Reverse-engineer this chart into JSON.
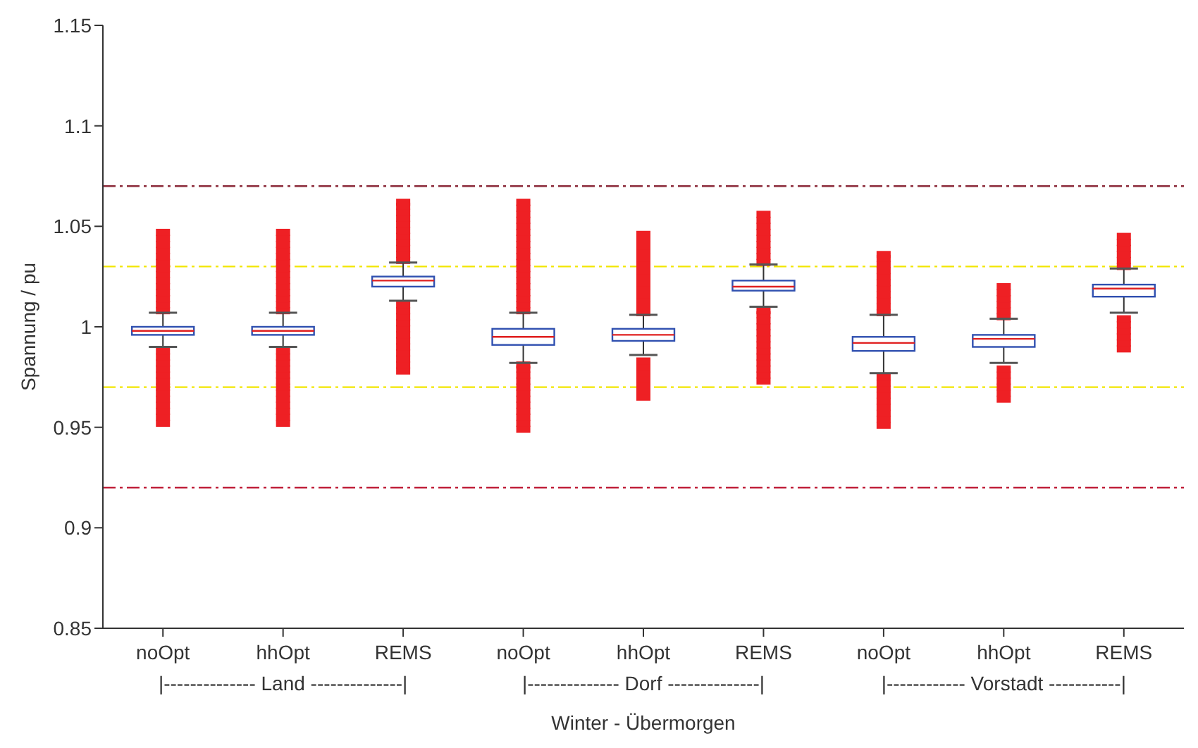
{
  "chart_data": {
    "type": "box",
    "xlabel": "Winter - Übermorgen",
    "ylabel": "Spannung / pu",
    "categories": [
      "noOpt",
      "hhOpt",
      "REMS",
      "noOpt",
      "hhOpt",
      "REMS",
      "noOpt",
      "hhOpt",
      "REMS"
    ],
    "annotations": [
      "|-------------- Land --------------|",
      "|-------------- Dorf --------------|",
      "|------------ Vorstadt -----------|"
    ],
    "ylim": [
      0.85,
      1.15
    ],
    "yticks": [
      0.85,
      0.9,
      0.95,
      1,
      1.05,
      1.1,
      1.15
    ],
    "grid": false,
    "ref_lines": [
      {
        "axis": "y",
        "value": 1.07,
        "color": "#8b2a3a",
        "line_style": "dashed"
      },
      {
        "axis": "y",
        "value": 1.03,
        "color": "#f2e600",
        "line_style": "dashed"
      },
      {
        "axis": "y",
        "value": 0.97,
        "color": "#f2e600",
        "line_style": "dashed"
      },
      {
        "axis": "y",
        "value": 0.92,
        "color": "#c0203a",
        "line_style": "dashed"
      }
    ],
    "boxes": [
      {
        "low": 0.99,
        "q1": 0.996,
        "median": 0.998,
        "q3": 1.0,
        "high": 1.007,
        "outliers": [
          1.008,
          1.011,
          1.014,
          1.017,
          1.02,
          1.023,
          1.026,
          1.029,
          1.032,
          1.035,
          1.038,
          1.041,
          1.044,
          1.047,
          0.952,
          0.955,
          0.958,
          0.961,
          0.964,
          0.967,
          0.97,
          0.973,
          0.976,
          0.979,
          0.982,
          0.985,
          0.988
        ]
      },
      {
        "low": 0.99,
        "q1": 0.996,
        "median": 0.998,
        "q3": 1.0,
        "high": 1.007,
        "outliers": [
          1.008,
          1.011,
          1.014,
          1.017,
          1.02,
          1.023,
          1.026,
          1.029,
          1.032,
          1.035,
          1.038,
          1.041,
          1.044,
          1.047,
          0.952,
          0.955,
          0.958,
          0.961,
          0.964,
          0.967,
          0.97,
          0.973,
          0.976,
          0.979,
          0.982,
          0.985,
          0.988
        ]
      },
      {
        "low": 1.013,
        "q1": 1.02,
        "median": 1.023,
        "q3": 1.025,
        "high": 1.032,
        "outliers": [
          1.033,
          1.036,
          1.039,
          1.042,
          1.045,
          1.048,
          1.051,
          1.054,
          1.057,
          1.06,
          1.062,
          0.978,
          0.981,
          0.984,
          0.987,
          0.99,
          0.993,
          0.996,
          0.999,
          1.002,
          1.005,
          1.008,
          1.011
        ]
      },
      {
        "low": 0.982,
        "q1": 0.991,
        "median": 0.995,
        "q3": 0.999,
        "high": 1.007,
        "outliers": [
          1.008,
          1.011,
          1.014,
          1.017,
          1.02,
          1.023,
          1.026,
          1.029,
          1.032,
          1.035,
          1.038,
          1.041,
          1.044,
          1.047,
          1.05,
          1.053,
          1.056,
          1.059,
          1.062,
          0.949,
          0.952,
          0.955,
          0.958,
          0.961,
          0.964,
          0.967,
          0.97,
          0.973,
          0.976,
          0.979,
          0.981
        ]
      },
      {
        "low": 0.986,
        "q1": 0.993,
        "median": 0.996,
        "q3": 0.999,
        "high": 1.006,
        "outliers": [
          1.007,
          1.01,
          1.013,
          1.016,
          1.019,
          1.022,
          1.025,
          1.028,
          1.031,
          1.034,
          1.037,
          1.04,
          1.043,
          1.046,
          0.965,
          0.968,
          0.971,
          0.974,
          0.977,
          0.98,
          0.983
        ]
      },
      {
        "low": 1.01,
        "q1": 1.018,
        "median": 1.02,
        "q3": 1.023,
        "high": 1.031,
        "outliers": [
          1.032,
          1.035,
          1.038,
          1.041,
          1.044,
          1.047,
          1.05,
          1.053,
          1.056,
          0.973,
          0.976,
          0.979,
          0.982,
          0.985,
          0.988,
          0.991,
          0.994,
          0.997,
          1.0,
          1.003,
          1.006,
          1.008
        ]
      },
      {
        "low": 0.977,
        "q1": 0.988,
        "median": 0.992,
        "q3": 0.995,
        "high": 1.006,
        "outliers": [
          1.007,
          1.01,
          1.013,
          1.016,
          1.019,
          1.022,
          1.025,
          1.028,
          1.031,
          1.034,
          1.036,
          0.951,
          0.954,
          0.957,
          0.96,
          0.963,
          0.966,
          0.969,
          0.972,
          0.975
        ]
      },
      {
        "low": 0.982,
        "q1": 0.99,
        "median": 0.994,
        "q3": 0.996,
        "high": 1.004,
        "outliers": [
          1.005,
          1.008,
          1.011,
          1.014,
          1.017,
          1.02,
          0.964,
          0.967,
          0.97,
          0.973,
          0.976,
          0.979
        ]
      },
      {
        "low": 1.007,
        "q1": 1.015,
        "median": 1.019,
        "q3": 1.021,
        "high": 1.029,
        "outliers": [
          1.03,
          1.033,
          1.036,
          1.039,
          1.042,
          1.045,
          0.989,
          0.992,
          0.995,
          0.998,
          1.001,
          1.004
        ]
      }
    ]
  }
}
